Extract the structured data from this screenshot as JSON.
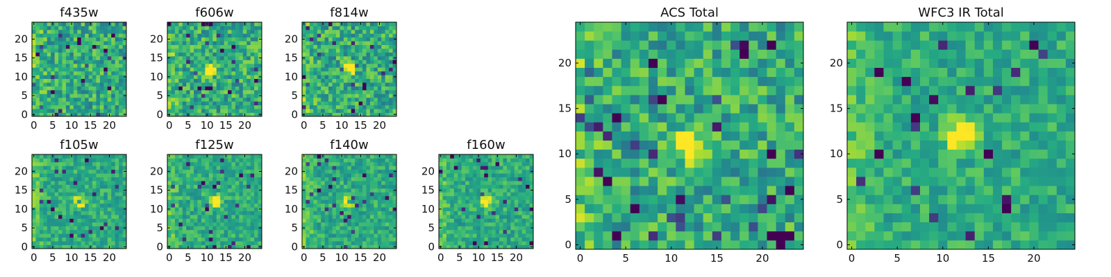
{
  "figure": {
    "colormap": "viridis"
  },
  "chart_data": [
    {
      "type": "heatmap",
      "id": "f435w",
      "title": "f435w",
      "grid": [
        25,
        25
      ],
      "xlim": [
        0,
        25
      ],
      "ylim": [
        0,
        25
      ],
      "xticks": [
        "0",
        "5",
        "10",
        "15",
        "20"
      ],
      "yticks": [
        "0",
        "5",
        "10",
        "15",
        "20"
      ],
      "bright_spot": []
    },
    {
      "type": "heatmap",
      "id": "f606w",
      "title": "f606w",
      "grid": [
        25,
        25
      ],
      "xlim": [
        0,
        25
      ],
      "ylim": [
        0,
        25
      ],
      "xticks": [
        "0",
        "5",
        "10",
        "15",
        "20"
      ],
      "yticks": [
        "0",
        "5",
        "10",
        "15",
        "20"
      ],
      "bright_spot": [
        11,
        12
      ]
    },
    {
      "type": "heatmap",
      "id": "f814w",
      "title": "f814w",
      "grid": [
        25,
        25
      ],
      "xlim": [
        0,
        25
      ],
      "ylim": [
        0,
        25
      ],
      "xticks": [
        "0",
        "5",
        "10",
        "15",
        "20"
      ],
      "yticks": [
        "0",
        "5",
        "10",
        "15",
        "20"
      ],
      "bright_spot": [
        12,
        12
      ]
    },
    {
      "type": "heatmap",
      "id": "f105w",
      "title": "f105w",
      "grid": [
        25,
        25
      ],
      "xlim": [
        0,
        25
      ],
      "ylim": [
        0,
        25
      ],
      "xticks": [
        "0",
        "5",
        "10",
        "15",
        "20"
      ],
      "yticks": [
        "0",
        "5",
        "10",
        "15",
        "20"
      ],
      "bright_spot": [
        12,
        12
      ]
    },
    {
      "type": "heatmap",
      "id": "f125w",
      "title": "f125w",
      "grid": [
        25,
        25
      ],
      "xlim": [
        0,
        25
      ],
      "ylim": [
        0,
        25
      ],
      "xticks": [
        "0",
        "5",
        "10",
        "15",
        "20"
      ],
      "yticks": [
        "0",
        "5",
        "10",
        "15",
        "20"
      ],
      "bright_spot": [
        12,
        12
      ]
    },
    {
      "type": "heatmap",
      "id": "f140w",
      "title": "f140w",
      "grid": [
        25,
        25
      ],
      "xlim": [
        0,
        25
      ],
      "ylim": [
        0,
        25
      ],
      "xticks": [
        "0",
        "5",
        "10",
        "15",
        "20"
      ],
      "yticks": [
        "0",
        "5",
        "10",
        "15",
        "20"
      ],
      "bright_spot": [
        12,
        12
      ]
    },
    {
      "type": "heatmap",
      "id": "f160w",
      "title": "f160w",
      "grid": [
        25,
        25
      ],
      "xlim": [
        0,
        25
      ],
      "ylim": [
        0,
        25
      ],
      "xticks": [
        "0",
        "5",
        "10",
        "15",
        "20"
      ],
      "yticks": [
        "0",
        "5",
        "10",
        "15",
        "20"
      ],
      "bright_spot": [
        12,
        12
      ]
    },
    {
      "type": "heatmap",
      "id": "acs-total",
      "title": "ACS Total",
      "grid": [
        25,
        25
      ],
      "xlim": [
        0,
        25
      ],
      "ylim": [
        0,
        25
      ],
      "xticks": [
        "0",
        "5",
        "10",
        "15",
        "20"
      ],
      "yticks": [
        "0",
        "5",
        "10",
        "15",
        "20"
      ],
      "bright_spot": [
        12,
        11
      ]
    },
    {
      "type": "heatmap",
      "id": "wfc3-ir-total",
      "title": "WFC3 IR Total",
      "grid": [
        25,
        25
      ],
      "xlim": [
        0,
        25
      ],
      "ylim": [
        0,
        25
      ],
      "xticks": [
        "0",
        "5",
        "10",
        "15",
        "20"
      ],
      "yticks": [
        "0",
        "5",
        "10",
        "15",
        "20"
      ],
      "bright_spot": [
        12,
        12
      ]
    }
  ]
}
